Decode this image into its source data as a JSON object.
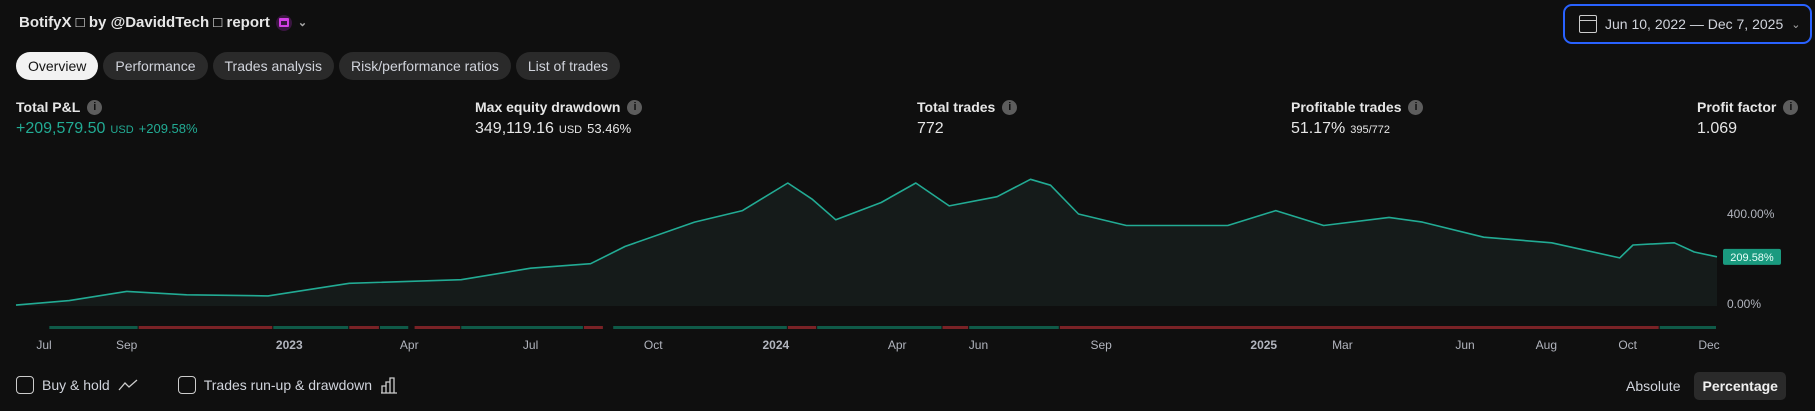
{
  "header": {
    "title": "BotifyX □ by @DaviddTech □ report",
    "date_range": "Jun 10, 2022 — Dec 7, 2025"
  },
  "tabs": [
    "Overview",
    "Performance",
    "Trades analysis",
    "Risk/performance ratios",
    "List of trades"
  ],
  "stats": {
    "total_pnl": {
      "label": "Total P&L",
      "value": "+209,579.50",
      "unit": "USD",
      "pct": "+209.58%"
    },
    "max_dd": {
      "label": "Max equity drawdown",
      "value": "349,119.16",
      "unit": "USD",
      "pct": "53.46%"
    },
    "total_trades": {
      "label": "Total trades",
      "value": "772"
    },
    "profitable": {
      "label": "Profitable trades",
      "value": "51.17%",
      "sub": "395/772"
    },
    "profit_factor": {
      "label": "Profit factor",
      "value": "1.069"
    }
  },
  "footer": {
    "buy_hold": "Buy & hold",
    "runup": "Trades run-up & drawdown",
    "absolute": "Absolute",
    "percentage": "Percentage"
  },
  "colors": {
    "line": "#22ab94",
    "win": "#0f5a48",
    "loss": "#7a2226",
    "accent": "#2962ff"
  },
  "chart_data": {
    "type": "area",
    "start": "2022-06-10",
    "end": "2025-12-07",
    "ylabel_ticks": [
      "0.00%",
      "400.00%"
    ],
    "y_ticks": [
      0,
      400
    ],
    "last_label": "209.58%",
    "x_ticks": [
      {
        "date": "2022-07-01",
        "label": "Jul"
      },
      {
        "date": "2022-09-01",
        "label": "Sep"
      },
      {
        "date": "2023-01-01",
        "label": "2023",
        "bold": true
      },
      {
        "date": "2023-04-01",
        "label": "Apr"
      },
      {
        "date": "2023-07-01",
        "label": "Jul"
      },
      {
        "date": "2023-10-01",
        "label": "Oct"
      },
      {
        "date": "2024-01-01",
        "label": "2024",
        "bold": true
      },
      {
        "date": "2024-04-01",
        "label": "Apr"
      },
      {
        "date": "2024-06-01",
        "label": "Jun"
      },
      {
        "date": "2024-09-01",
        "label": "Sep"
      },
      {
        "date": "2025-01-01",
        "label": "2025",
        "bold": true
      },
      {
        "date": "2025-03-01",
        "label": "Mar"
      },
      {
        "date": "2025-06-01",
        "label": "Jun"
      },
      {
        "date": "2025-08-01",
        "label": "Aug"
      },
      {
        "date": "2025-10-01",
        "label": "Oct"
      },
      {
        "date": "2025-12-01",
        "label": "Dec"
      }
    ],
    "series": [
      [
        "2022-06-10",
        -5
      ],
      [
        "2022-07-20",
        15
      ],
      [
        "2022-09-01",
        56
      ],
      [
        "2022-10-16",
        41
      ],
      [
        "2022-12-16",
        36
      ],
      [
        "2023-02-15",
        92
      ],
      [
        "2023-05-10",
        108
      ],
      [
        "2023-07-01",
        159
      ],
      [
        "2023-08-15",
        179
      ],
      [
        "2023-09-10",
        256
      ],
      [
        "2023-11-01",
        364
      ],
      [
        "2023-12-07",
        415
      ],
      [
        "2024-01-10",
        538
      ],
      [
        "2024-01-28",
        467
      ],
      [
        "2024-02-15",
        374
      ],
      [
        "2024-03-20",
        451
      ],
      [
        "2024-04-15",
        538
      ],
      [
        "2024-05-10",
        436
      ],
      [
        "2024-06-15",
        477
      ],
      [
        "2024-07-10",
        554
      ],
      [
        "2024-07-25",
        528
      ],
      [
        "2024-08-15",
        400
      ],
      [
        "2024-09-20",
        349
      ],
      [
        "2024-10-15",
        349
      ],
      [
        "2024-12-05",
        349
      ],
      [
        "2025-01-10",
        415
      ],
      [
        "2025-02-15",
        349
      ],
      [
        "2025-04-05",
        385
      ],
      [
        "2025-04-30",
        364
      ],
      [
        "2025-06-15",
        297
      ],
      [
        "2025-08-05",
        272
      ],
      [
        "2025-09-25",
        205
      ],
      [
        "2025-10-05",
        262
      ],
      [
        "2025-11-05",
        272
      ],
      [
        "2025-11-20",
        231
      ],
      [
        "2025-12-07",
        209.58
      ]
    ],
    "trade_segments": [
      [
        "2022-07-05",
        "2022-09-10",
        "win"
      ],
      [
        "2022-09-10",
        "2022-12-20",
        "loss"
      ],
      [
        "2022-12-20",
        "2023-02-15",
        "win"
      ],
      [
        "2023-02-15",
        "2023-03-10",
        "loss"
      ],
      [
        "2023-03-10",
        "2023-04-01",
        "win"
      ],
      [
        "2023-04-05",
        "2023-05-10",
        "loss"
      ],
      [
        "2023-05-10",
        "2023-08-10",
        "win"
      ],
      [
        "2023-08-10",
        "2023-08-25",
        "loss"
      ],
      [
        "2023-09-01",
        "2024-01-10",
        "win"
      ],
      [
        "2024-01-10",
        "2024-02-01",
        "loss"
      ],
      [
        "2024-02-01",
        "2024-05-05",
        "win"
      ],
      [
        "2024-05-05",
        "2024-05-25",
        "loss"
      ],
      [
        "2024-05-25",
        "2024-08-01",
        "win"
      ],
      [
        "2024-08-01",
        "2025-10-25",
        "loss"
      ],
      [
        "2025-10-25",
        "2025-12-07",
        "win"
      ]
    ]
  }
}
